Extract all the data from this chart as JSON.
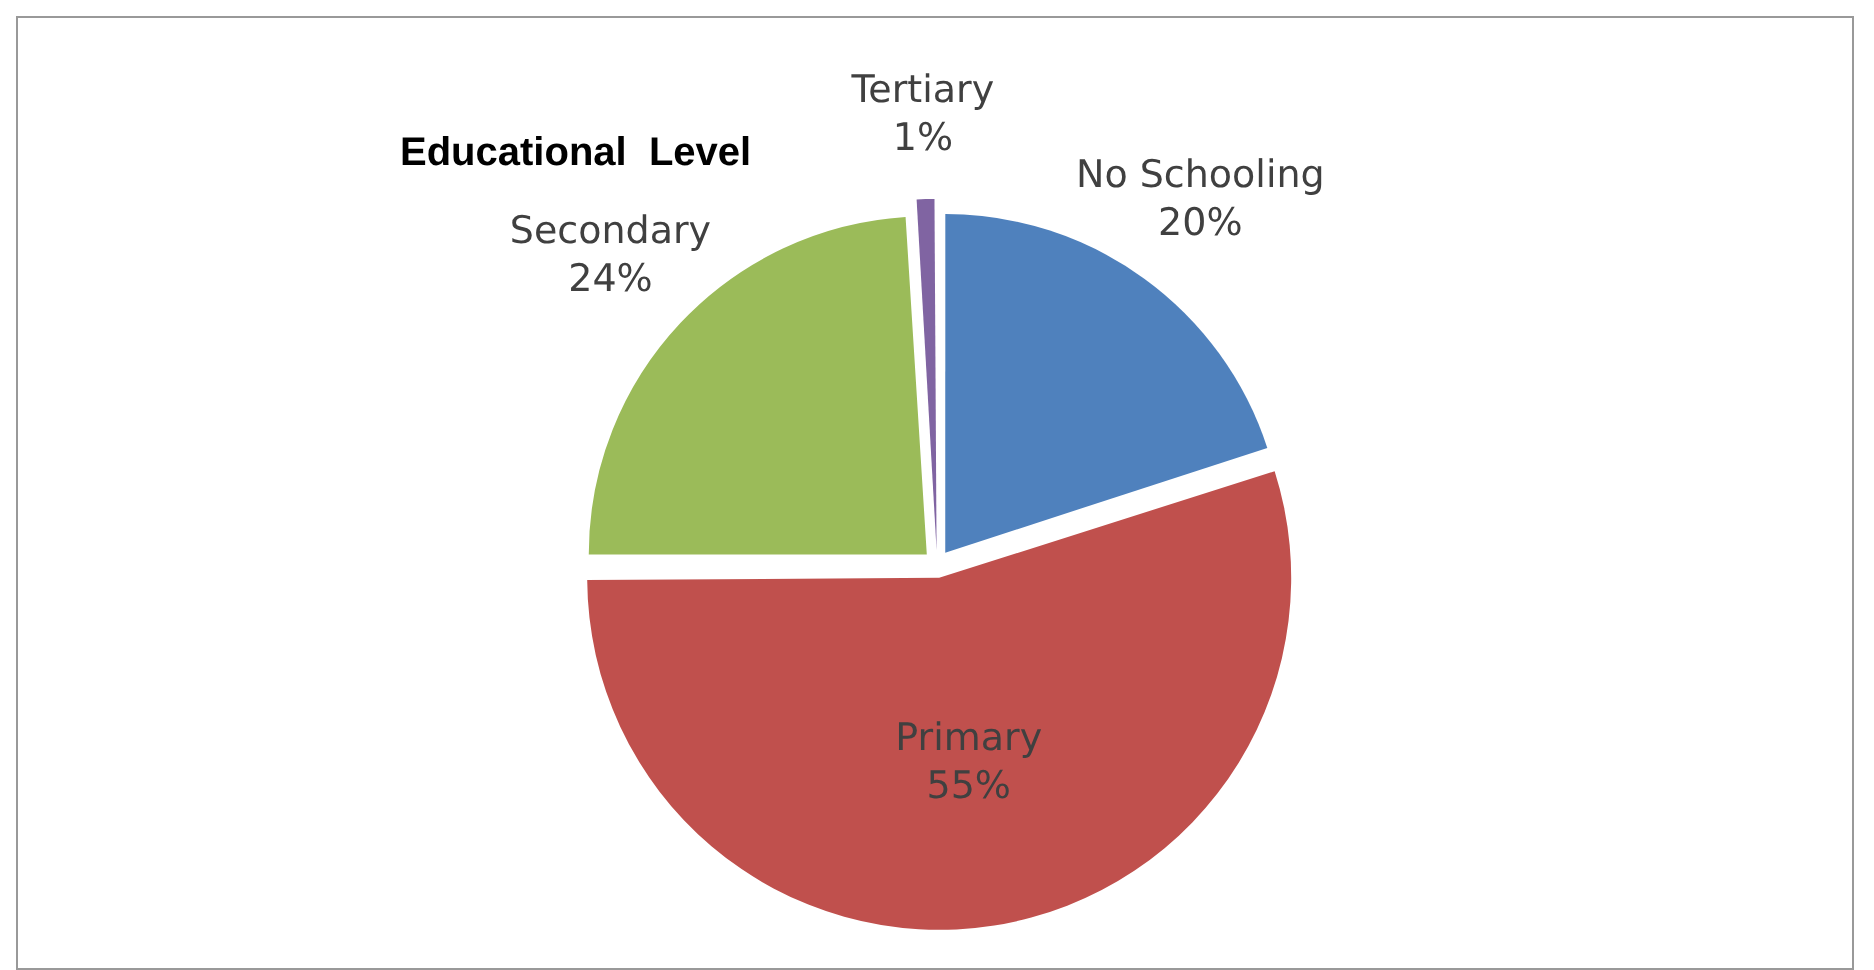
{
  "chart_data": {
    "type": "pie",
    "title": "Educational  Level",
    "categories": [
      "No Schooling",
      "Primary",
      "Secondary",
      "Tertiary"
    ],
    "values": [
      20,
      55,
      24,
      1
    ],
    "colors": [
      "#4f81bd",
      "#c0504d",
      "#9bbb59",
      "#8064a2"
    ],
    "value_labels": [
      "20%",
      "55%",
      "24%",
      "1%"
    ],
    "legend": false
  }
}
